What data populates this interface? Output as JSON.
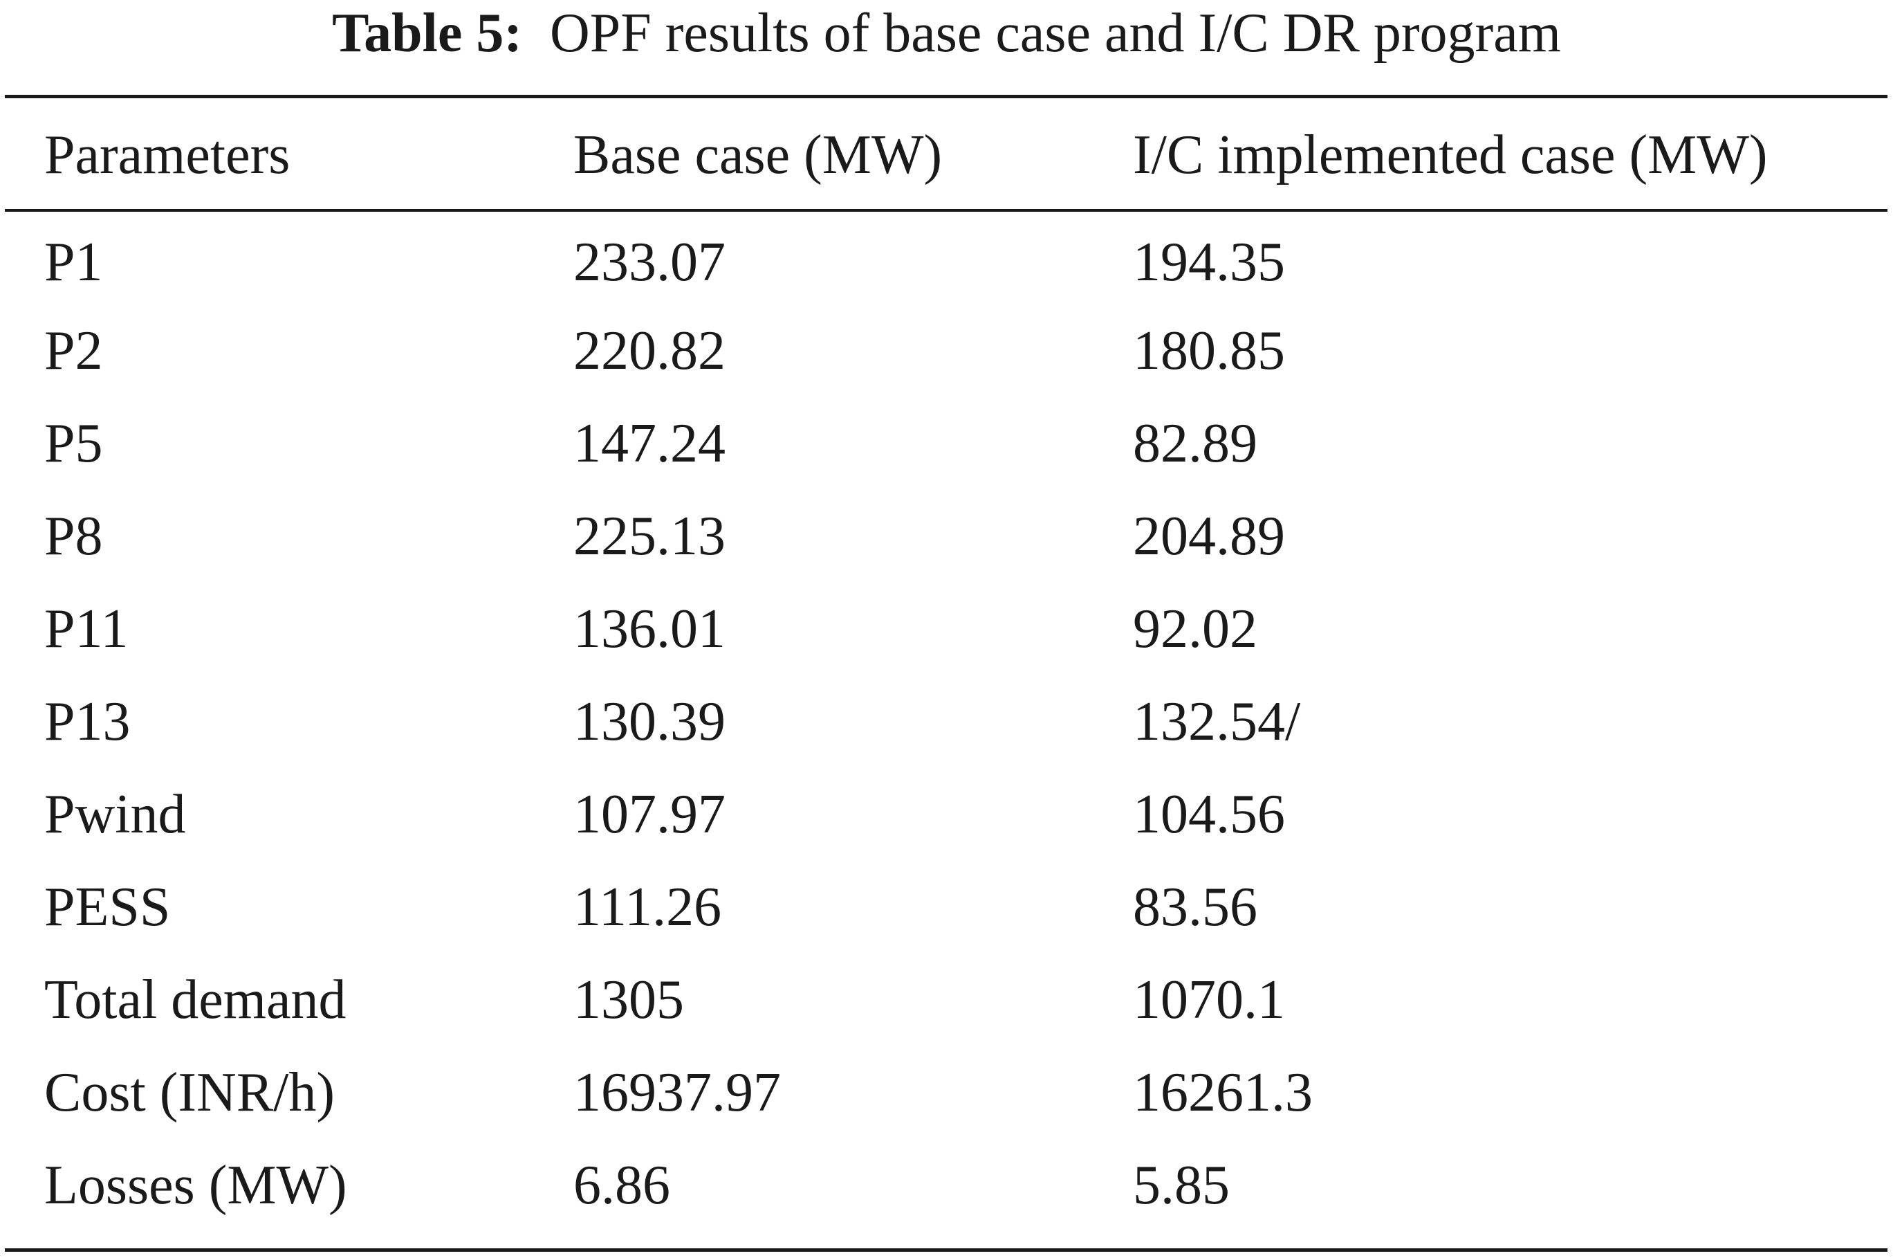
{
  "caption": {
    "label": "Table 5:",
    "text": "OPF results of base case and I/C DR program"
  },
  "table": {
    "headers": [
      "Parameters",
      "Base case (MW)",
      "I/C implemented case (MW)"
    ],
    "rows": [
      [
        "P1",
        "233.07",
        "194.35"
      ],
      [
        "P2",
        "220.82",
        "180.85"
      ],
      [
        "P5",
        "147.24",
        "82.89"
      ],
      [
        "P8",
        "225.13",
        "204.89"
      ],
      [
        "P11",
        "136.01",
        "92.02"
      ],
      [
        "P13",
        "130.39",
        "132.54/"
      ],
      [
        "Pwind",
        "107.97",
        "104.56"
      ],
      [
        "PESS",
        "111.26",
        "83.56"
      ],
      [
        "Total demand",
        "1305",
        "1070.1"
      ],
      [
        "Cost (INR/h)",
        "16937.97",
        "16261.3"
      ],
      [
        "Losses (MW)",
        "6.86",
        "5.85"
      ]
    ]
  }
}
